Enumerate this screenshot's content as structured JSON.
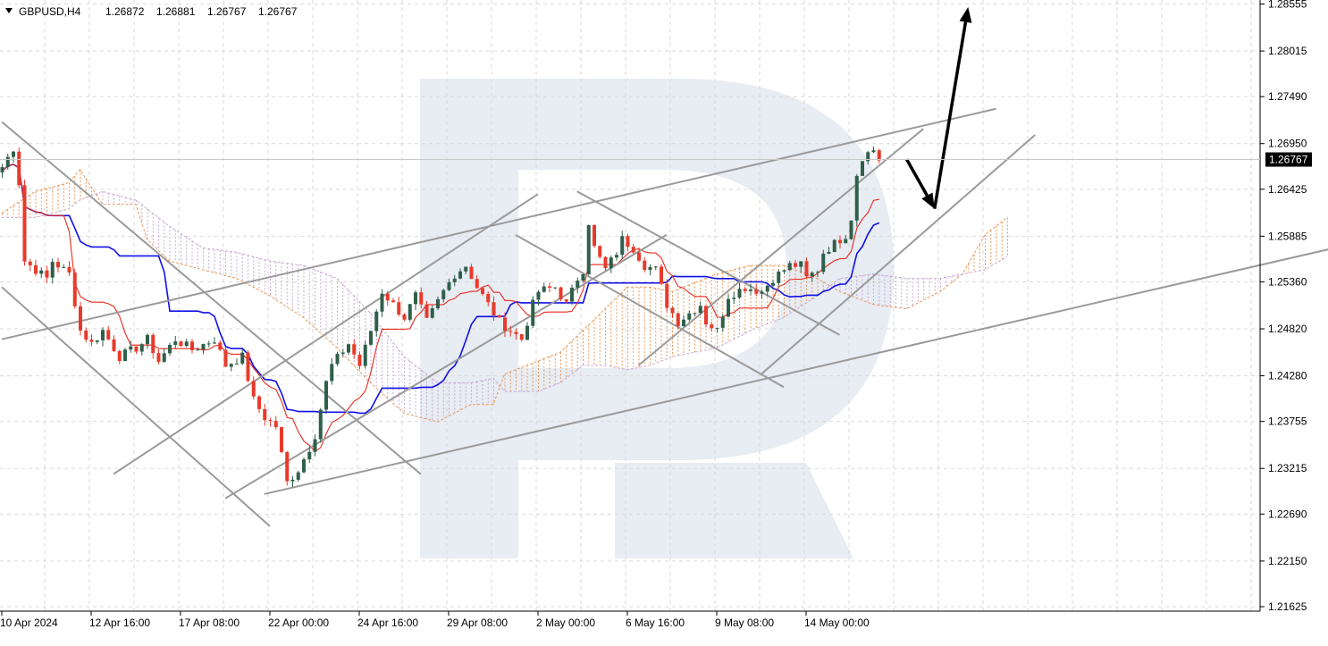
{
  "header": {
    "symbol": "GBPUSD,H4",
    "open": "1.26872",
    "high": "1.26881",
    "low": "1.26767",
    "close": "1.26767"
  },
  "current_price_label": "1.26767",
  "colors": {
    "bull": "#2f5f4a",
    "bear": "#e83a2a",
    "tenkan": "#e8291c",
    "kijun": "#1010e6",
    "cloud_bull": "#e89a5a",
    "cloud_bear": "#c9a8d4",
    "trend_line": "#9a9a9a",
    "arrow": "#000000",
    "grid": "#d9d9d9",
    "watermark": "#e8ecf3"
  },
  "chart_data": {
    "type": "candlestick",
    "symbol": "GBPUSD",
    "timeframe": "H4",
    "ylim": [
      1.21625,
      1.28555
    ],
    "y_ticks": [
      "1.28555",
      "1.28015",
      "1.27490",
      "1.26950",
      "1.26425",
      "1.25885",
      "1.25360",
      "1.24820",
      "1.24280",
      "1.23755",
      "1.23215",
      "1.22690",
      "1.22150",
      "1.21625"
    ],
    "x_ticks": [
      "10 Apr 2024",
      "12 Apr 16:00",
      "17 Apr 08:00",
      "22 Apr 00:00",
      "24 Apr 16:00",
      "29 Apr 08:00",
      "2 May 00:00",
      "6 May 16:00",
      "9 May 08:00",
      "14 May 00:00"
    ],
    "x_tick_index": [
      0,
      16,
      32,
      48,
      64,
      80,
      96,
      112,
      128,
      144
    ],
    "candle_count": 158,
    "price_path": [
      [
        0,
        1.2668
      ],
      [
        2,
        1.269
      ],
      [
        3,
        1.265
      ],
      [
        4,
        1.256
      ],
      [
        8,
        1.254
      ],
      [
        9,
        1.256
      ],
      [
        12,
        1.2545
      ],
      [
        14,
        1.248
      ],
      [
        16,
        1.2465
      ],
      [
        18,
        1.248
      ],
      [
        21,
        1.245
      ],
      [
        24,
        1.246
      ],
      [
        26,
        1.247
      ],
      [
        28,
        1.2445
      ],
      [
        31,
        1.247
      ],
      [
        34,
        1.2458
      ],
      [
        38,
        1.247
      ],
      [
        40,
        1.244
      ],
      [
        43,
        1.245
      ],
      [
        45,
        1.24
      ],
      [
        47,
        1.238
      ],
      [
        49,
        1.237
      ],
      [
        51,
        1.2305
      ],
      [
        53,
        1.232
      ],
      [
        55,
        1.2345
      ],
      [
        56,
        1.236
      ],
      [
        58,
        1.242
      ],
      [
        59,
        1.244
      ],
      [
        62,
        1.2465
      ],
      [
        64,
        1.244
      ],
      [
        66,
        1.248
      ],
      [
        68,
        1.2525
      ],
      [
        70,
        1.251
      ],
      [
        72,
        1.2495
      ],
      [
        74,
        1.252
      ],
      [
        76,
        1.249
      ],
      [
        79,
        1.2525
      ],
      [
        81,
        1.2545
      ],
      [
        83,
        1.2555
      ],
      [
        85,
        1.253
      ],
      [
        87,
        1.251
      ],
      [
        89,
        1.249
      ],
      [
        91,
        1.248
      ],
      [
        93,
        1.247
      ],
      [
        95,
        1.251
      ],
      [
        96,
        1.2525
      ],
      [
        99,
        1.253
      ],
      [
        101,
        1.251
      ],
      [
        103,
        1.254
      ],
      [
        104,
        1.255
      ],
      [
        105,
        1.2605
      ],
      [
        106,
        1.2575
      ],
      [
        108,
        1.255
      ],
      [
        110,
        1.257
      ],
      [
        111,
        1.2585
      ],
      [
        113,
        1.2575
      ],
      [
        115,
        1.2555
      ],
      [
        117,
        1.255
      ],
      [
        119,
        1.251
      ],
      [
        121,
        1.249
      ],
      [
        123,
        1.25
      ],
      [
        125,
        1.251
      ],
      [
        126,
        1.249
      ],
      [
        128,
        1.248
      ],
      [
        129,
        1.25
      ],
      [
        130,
        1.252
      ],
      [
        133,
        1.253
      ],
      [
        136,
        1.2525
      ],
      [
        138,
        1.254
      ],
      [
        141,
        1.2555
      ],
      [
        143,
        1.2555
      ],
      [
        144,
        1.254
      ],
      [
        146,
        1.255
      ],
      [
        147,
        1.257
      ],
      [
        149,
        1.258
      ],
      [
        151,
        1.259
      ],
      [
        152,
        1.261
      ],
      [
        153,
        1.266
      ],
      [
        154,
        1.268
      ],
      [
        156,
        1.2688
      ],
      [
        157,
        1.2677
      ]
    ],
    "cloud_path": [
      [
        0,
        1.2615,
        1.261
      ],
      [
        6,
        1.264,
        1.261
      ],
      [
        12,
        1.265,
        1.262
      ],
      [
        14,
        1.2665,
        1.263
      ],
      [
        18,
        1.2625,
        1.264
      ],
      [
        24,
        1.2625,
        1.263
      ],
      [
        26,
        1.2585,
        1.262
      ],
      [
        30,
        1.256,
        1.26
      ],
      [
        36,
        1.255,
        1.2575
      ],
      [
        42,
        1.254,
        1.257
      ],
      [
        48,
        1.252,
        1.256
      ],
      [
        54,
        1.2495,
        1.2555
      ],
      [
        60,
        1.246,
        1.254
      ],
      [
        66,
        1.242,
        1.25
      ],
      [
        72,
        1.2385,
        1.245
      ],
      [
        78,
        1.2375,
        1.242
      ],
      [
        84,
        1.2395,
        1.242
      ],
      [
        88,
        1.2395,
        1.2425
      ],
      [
        90,
        1.243,
        1.241
      ],
      [
        96,
        1.2445,
        1.241
      ],
      [
        100,
        1.2455,
        1.242
      ],
      [
        104,
        1.248,
        1.244
      ],
      [
        108,
        1.2505,
        1.244
      ],
      [
        112,
        1.253,
        1.2435
      ],
      [
        116,
        1.253,
        1.244
      ],
      [
        120,
        1.2525,
        1.245
      ],
      [
        124,
        1.2535,
        1.2455
      ],
      [
        128,
        1.2545,
        1.246
      ],
      [
        134,
        1.2555,
        1.248
      ],
      [
        140,
        1.2555,
        1.2495
      ],
      [
        146,
        1.254,
        1.252
      ],
      [
        150,
        1.2525,
        1.254
      ],
      [
        156,
        1.251,
        1.2545
      ],
      [
        162,
        1.2505,
        1.254
      ],
      [
        168,
        1.2525,
        1.254
      ],
      [
        172,
        1.2545,
        1.2545
      ],
      [
        176,
        1.259,
        1.255
      ],
      [
        180,
        1.261,
        1.2565
      ]
    ],
    "trend_lines": [
      {
        "from": [
          0,
          1.272
        ],
        "to": [
          75,
          1.2315
        ]
      },
      {
        "from": [
          0,
          1.253
        ],
        "to": [
          48,
          1.2255
        ]
      },
      {
        "from": [
          20,
          1.2315
        ],
        "to": [
          96,
          1.2637
        ]
      },
      {
        "from": [
          40,
          1.2287
        ],
        "to": [
          119,
          1.259
        ]
      },
      {
        "from": [
          0,
          1.247
        ],
        "to": [
          178,
          1.2735
        ]
      },
      {
        "from": [
          47,
          1.2292
        ],
        "to": [
          242,
          1.258
        ]
      },
      {
        "from": [
          92,
          1.259
        ],
        "to": [
          140,
          1.2415
        ]
      },
      {
        "from": [
          103,
          1.264
        ],
        "to": [
          150,
          1.2475
        ]
      },
      {
        "from": [
          114,
          1.244
        ],
        "to": [
          165,
          1.2712
        ]
      },
      {
        "from": [
          136,
          1.243
        ],
        "to": [
          185,
          1.2705
        ]
      }
    ],
    "forecast_arrows": [
      {
        "from": [
          162,
          1.2677
        ],
        "to": [
          167,
          1.262
        ]
      },
      {
        "from": [
          167,
          1.262
        ],
        "to": [
          173,
          1.2852
        ]
      }
    ]
  }
}
